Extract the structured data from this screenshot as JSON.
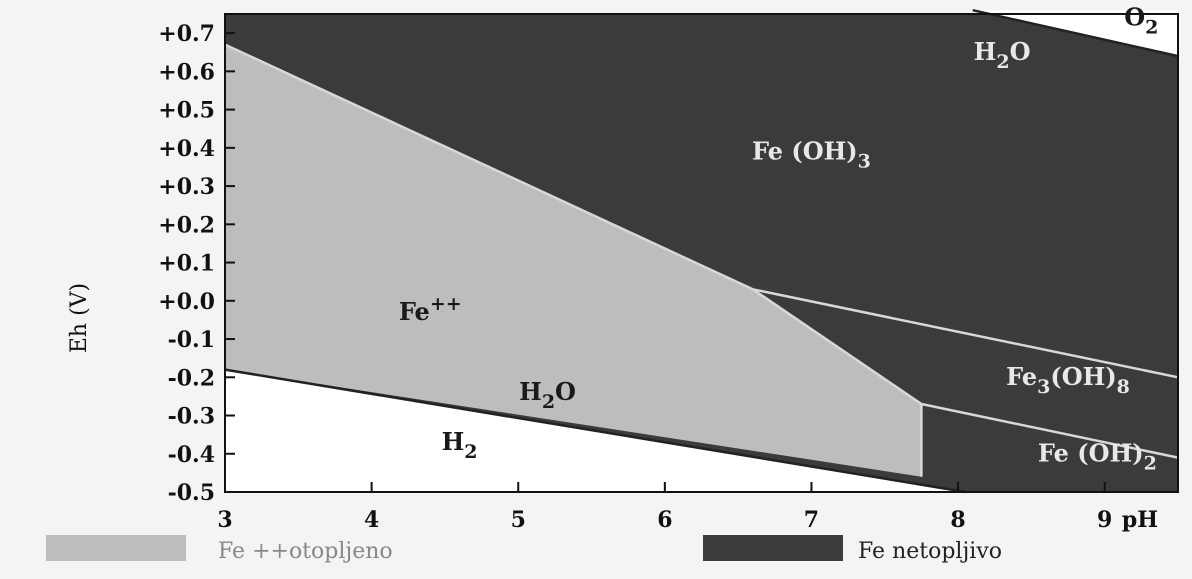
{
  "chart_data": {
    "type": "area",
    "title": "",
    "ylabel": "Eh (V)",
    "xlabel": "pH",
    "xlim": [
      3,
      9.5
    ],
    "ylim": [
      -0.5,
      0.75
    ],
    "x_ticks": [
      "3",
      "4",
      "5",
      "6",
      "7",
      "8",
      "9"
    ],
    "x_tick_values": [
      3,
      4,
      5,
      6,
      7,
      8,
      9
    ],
    "y_ticks": [
      "+0.7",
      "+0.6",
      "+0.5",
      "+0.4",
      "+0.3",
      "+0.2",
      "+0.1",
      "+0.0",
      "-0.1",
      "-0.2",
      "-0.3",
      "-0.4",
      "-0.5"
    ],
    "y_tick_values": [
      0.7,
      0.6,
      0.5,
      0.4,
      0.3,
      0.2,
      0.1,
      0.0,
      -0.1,
      -0.2,
      -0.3,
      -0.4,
      -0.5
    ],
    "boundaries": {
      "o2_h2o": [
        [
          8.1,
          0.76
        ],
        [
          9.5,
          0.64
        ]
      ],
      "h2o_h2": [
        [
          3,
          -0.18
        ],
        [
          8.05,
          -0.5
        ]
      ],
      "fe2_feoh3": [
        [
          3,
          0.67
        ],
        [
          6.6,
          0.03
        ]
      ],
      "fe2_fe3oh8": [
        [
          6.6,
          0.03
        ],
        [
          7.75,
          -0.27
        ]
      ],
      "fe2_feoh2": [
        [
          7.75,
          -0.27
        ],
        [
          7.75,
          -0.46
        ]
      ],
      "feoh3_fe3oh8": [
        [
          6.6,
          0.03
        ],
        [
          9.5,
          -0.2
        ]
      ],
      "fe3oh8_feoh2": [
        [
          7.75,
          -0.27
        ],
        [
          9.5,
          -0.41
        ]
      ]
    },
    "regions": [
      {
        "name": "O2",
        "label": "O",
        "sub": "2",
        "x": 9.25,
        "y": 0.72,
        "style": "light"
      },
      {
        "name": "H2O (upper)",
        "label": "H",
        "sub": "2",
        "after": "O",
        "x": 8.3,
        "y": 0.63,
        "style": "dark-bg"
      },
      {
        "name": "Fe(OH)3",
        "label": "Fe (OH)",
        "sub": "3",
        "x": 7.0,
        "y": 0.37,
        "style": "dark-bg"
      },
      {
        "name": "Fe++",
        "label": "Fe",
        "sup": "++",
        "x": 4.4,
        "y": -0.05,
        "style": "mid-bg"
      },
      {
        "name": "H2O (lower)",
        "label": "H",
        "sub": "2",
        "after": "O",
        "x": 5.2,
        "y": -0.26,
        "style": "mid-bg"
      },
      {
        "name": "H2",
        "label": "H",
        "sub": "2",
        "x": 4.6,
        "y": -0.39,
        "style": "light"
      },
      {
        "name": "Fe3(OH)8",
        "label": "Fe",
        "sub": "3",
        "after": "(OH)",
        "sub2": "8",
        "x": 8.75,
        "y": -0.22,
        "style": "dark-bg"
      },
      {
        "name": "Fe(OH)2",
        "label": "Fe (OH)",
        "sub": "2",
        "x": 8.95,
        "y": -0.42,
        "style": "dark-bg"
      }
    ],
    "legend": [
      {
        "label": "Fe ++otopljeno",
        "color": "#bdbdbd"
      },
      {
        "label": "Fe netopljivo",
        "color": "#3b3b3b"
      }
    ],
    "grid": false,
    "legend_position": "bottom"
  },
  "colors": {
    "background": "#f4f4f4",
    "dissolved": "#bdbdbd",
    "insoluble": "#3b3b3b",
    "light_region": "#ffffff",
    "boundary_line": "#d8d8d8"
  },
  "legend_text": {
    "dissolved": "Fe ++otopljeno",
    "insoluble": "Fe netopljivo"
  },
  "axis_labels": {
    "y": "Eh (V)",
    "x": "pH"
  }
}
